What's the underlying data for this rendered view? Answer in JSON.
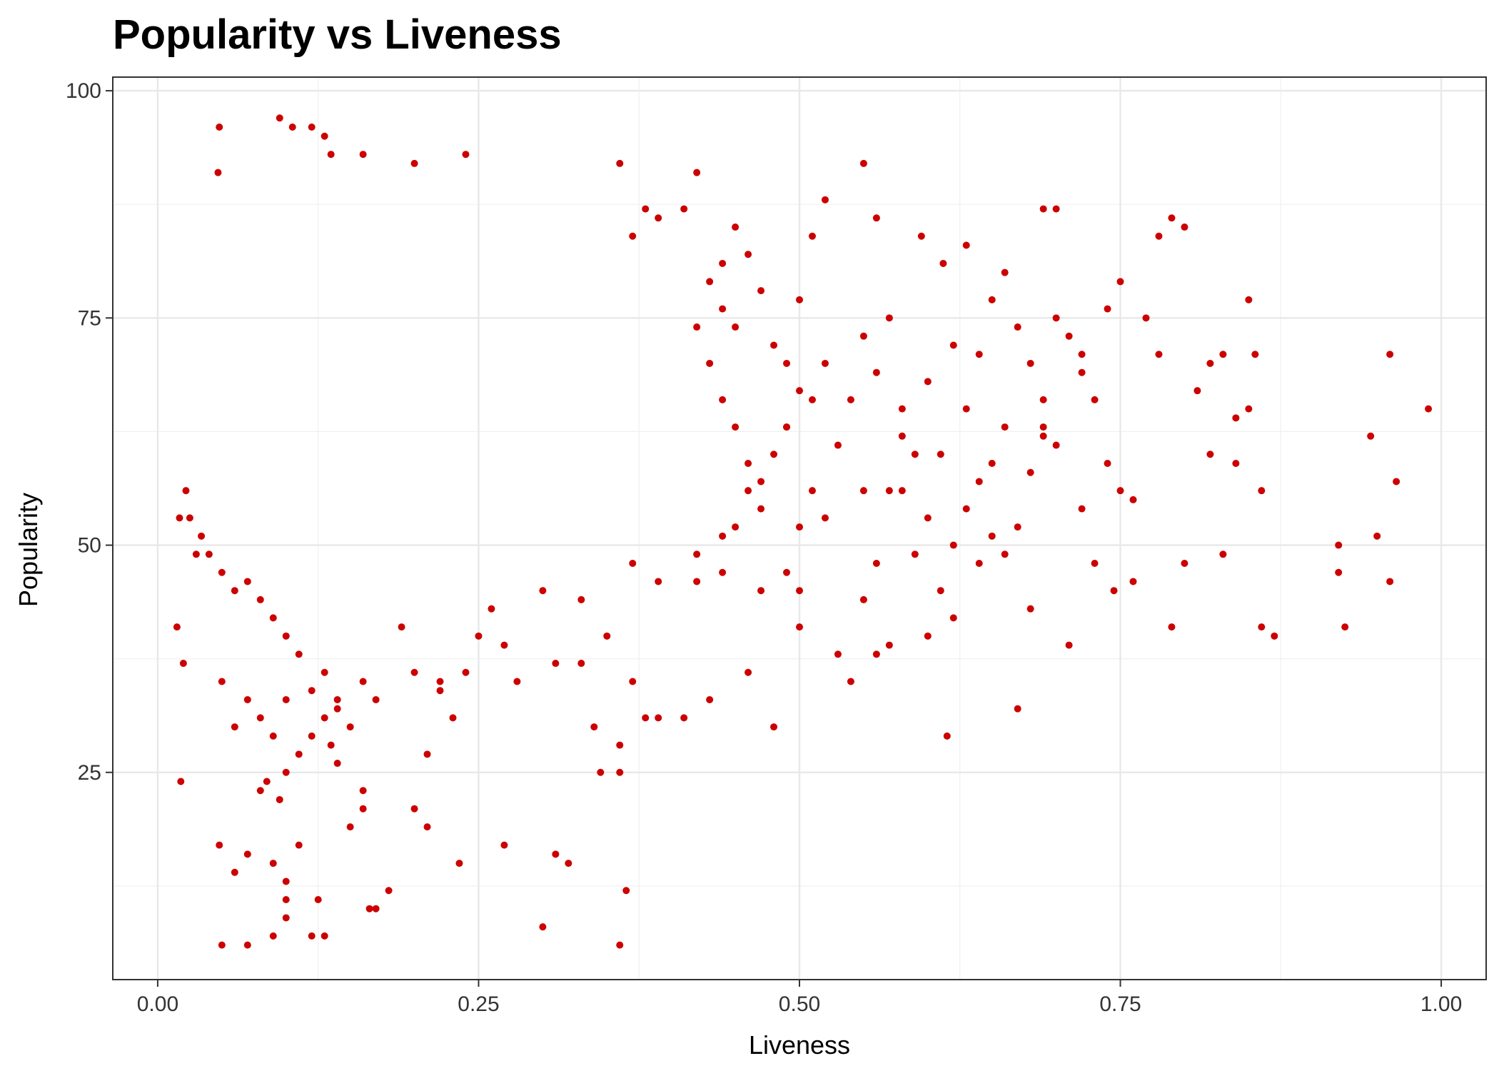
{
  "chart_data": {
    "type": "scatter",
    "title": "Popularity vs Liveness",
    "xlabel": "Liveness",
    "ylabel": "Popularity",
    "xlim": [
      -0.035,
      1.035
    ],
    "ylim": [
      2.2,
      101.5
    ],
    "x_ticks": [
      0.0,
      0.25,
      0.5,
      0.75,
      1.0
    ],
    "x_tick_labels": [
      "0.00",
      "0.25",
      "0.50",
      "0.75",
      "1.00"
    ],
    "y_ticks": [
      25,
      50,
      75,
      100
    ],
    "y_tick_labels": [
      "25",
      "50",
      "75",
      "100"
    ],
    "grid": true,
    "point_color": "#CC0000",
    "points": [
      [
        0.015,
        41
      ],
      [
        0.018,
        24
      ],
      [
        0.02,
        37
      ],
      [
        0.017,
        53
      ],
      [
        0.022,
        56
      ],
      [
        0.025,
        53
      ],
      [
        0.03,
        49
      ],
      [
        0.034,
        51
      ],
      [
        0.048,
        96
      ],
      [
        0.047,
        91
      ],
      [
        0.048,
        17
      ],
      [
        0.06,
        14
      ],
      [
        0.07,
        16
      ],
      [
        0.08,
        23
      ],
      [
        0.085,
        24
      ],
      [
        0.09,
        15
      ],
      [
        0.095,
        22
      ],
      [
        0.1,
        25
      ],
      [
        0.1,
        13
      ],
      [
        0.1,
        11
      ],
      [
        0.11,
        17
      ],
      [
        0.12,
        7
      ],
      [
        0.125,
        11
      ],
      [
        0.13,
        7
      ],
      [
        0.135,
        28
      ],
      [
        0.14,
        26
      ],
      [
        0.15,
        19
      ],
      [
        0.16,
        21
      ],
      [
        0.165,
        10
      ],
      [
        0.17,
        10
      ],
      [
        0.21,
        27
      ],
      [
        0.21,
        19
      ],
      [
        0.235,
        15
      ],
      [
        0.27,
        17
      ],
      [
        0.3,
        8
      ],
      [
        0.31,
        16
      ],
      [
        0.32,
        15
      ],
      [
        0.345,
        25
      ],
      [
        0.36,
        25
      ],
      [
        0.365,
        12
      ],
      [
        0.36,
        6
      ],
      [
        0.05,
        6
      ],
      [
        0.07,
        6
      ],
      [
        0.09,
        7
      ],
      [
        0.1,
        9
      ],
      [
        0.105,
        96
      ],
      [
        0.095,
        97
      ],
      [
        0.12,
        96
      ],
      [
        0.13,
        95
      ],
      [
        0.135,
        93
      ],
      [
        0.16,
        93
      ],
      [
        0.2,
        92
      ],
      [
        0.24,
        93
      ],
      [
        0.36,
        92
      ],
      [
        0.42,
        91
      ],
      [
        0.55,
        92
      ],
      [
        0.52,
        88
      ],
      [
        0.51,
        84
      ],
      [
        0.56,
        86
      ],
      [
        0.595,
        84
      ],
      [
        0.612,
        81
      ],
      [
        0.63,
        83
      ],
      [
        0.69,
        87
      ],
      [
        0.7,
        87
      ],
      [
        0.78,
        84
      ],
      [
        0.79,
        86
      ],
      [
        0.8,
        85
      ],
      [
        0.85,
        77
      ],
      [
        0.72,
        71
      ],
      [
        0.77,
        75
      ],
      [
        0.74,
        76
      ],
      [
        0.75,
        79
      ],
      [
        0.96,
        71
      ],
      [
        0.99,
        65
      ],
      [
        0.965,
        57
      ],
      [
        0.95,
        51
      ],
      [
        0.945,
        62
      ],
      [
        0.92,
        50
      ],
      [
        0.92,
        47
      ],
      [
        0.925,
        41
      ],
      [
        0.96,
        46
      ],
      [
        0.87,
        40
      ],
      [
        0.86,
        41
      ],
      [
        0.82,
        60
      ],
      [
        0.83,
        49
      ],
      [
        0.84,
        59
      ],
      [
        0.85,
        65
      ],
      [
        0.855,
        71
      ],
      [
        0.86,
        56
      ],
      [
        0.8,
        48
      ],
      [
        0.79,
        41
      ],
      [
        0.76,
        46
      ],
      [
        0.75,
        56
      ],
      [
        0.745,
        45
      ],
      [
        0.73,
        48
      ],
      [
        0.72,
        54
      ],
      [
        0.71,
        39
      ],
      [
        0.7,
        61
      ],
      [
        0.69,
        63
      ],
      [
        0.68,
        43
      ],
      [
        0.67,
        32
      ],
      [
        0.66,
        63
      ],
      [
        0.65,
        59
      ],
      [
        0.64,
        57
      ],
      [
        0.62,
        42
      ],
      [
        0.615,
        29
      ],
      [
        0.61,
        45
      ],
      [
        0.6,
        40
      ],
      [
        0.59,
        49
      ],
      [
        0.58,
        56
      ],
      [
        0.57,
        39
      ],
      [
        0.56,
        38
      ],
      [
        0.55,
        44
      ],
      [
        0.54,
        35
      ],
      [
        0.53,
        38
      ],
      [
        0.52,
        53
      ],
      [
        0.5,
        41
      ],
      [
        0.5,
        45
      ],
      [
        0.49,
        47
      ],
      [
        0.48,
        30
      ],
      [
        0.47,
        45
      ],
      [
        0.46,
        36
      ],
      [
        0.45,
        52
      ],
      [
        0.44,
        47
      ],
      [
        0.43,
        33
      ],
      [
        0.42,
        46
      ],
      [
        0.41,
        31
      ],
      [
        0.39,
        31
      ],
      [
        0.38,
        31
      ],
      [
        0.37,
        35
      ],
      [
        0.36,
        28
      ],
      [
        0.34,
        30
      ],
      [
        0.33,
        37
      ],
      [
        0.31,
        37
      ],
      [
        0.28,
        35
      ],
      [
        0.27,
        39
      ],
      [
        0.25,
        40
      ],
      [
        0.24,
        36
      ],
      [
        0.23,
        31
      ],
      [
        0.22,
        34
      ],
      [
        0.2,
        36
      ],
      [
        0.19,
        41
      ],
      [
        0.17,
        33
      ],
      [
        0.16,
        35
      ],
      [
        0.15,
        30
      ],
      [
        0.14,
        32
      ],
      [
        0.13,
        36
      ],
      [
        0.12,
        34
      ],
      [
        0.11,
        38
      ],
      [
        0.1,
        40
      ],
      [
        0.09,
        42
      ],
      [
        0.08,
        44
      ],
      [
        0.07,
        46
      ],
      [
        0.06,
        45
      ],
      [
        0.05,
        47
      ],
      [
        0.04,
        49
      ],
      [
        0.05,
        35
      ],
      [
        0.06,
        30
      ],
      [
        0.07,
        33
      ],
      [
        0.08,
        31
      ],
      [
        0.09,
        29
      ],
      [
        0.1,
        33
      ],
      [
        0.11,
        27
      ],
      [
        0.12,
        29
      ],
      [
        0.13,
        31
      ],
      [
        0.14,
        33
      ],
      [
        0.16,
        23
      ],
      [
        0.18,
        12
      ],
      [
        0.2,
        21
      ],
      [
        0.22,
        35
      ],
      [
        0.26,
        43
      ],
      [
        0.3,
        45
      ],
      [
        0.33,
        44
      ],
      [
        0.35,
        40
      ],
      [
        0.37,
        48
      ],
      [
        0.39,
        46
      ],
      [
        0.42,
        49
      ],
      [
        0.44,
        51
      ],
      [
        0.46,
        56
      ],
      [
        0.47,
        54
      ],
      [
        0.48,
        60
      ],
      [
        0.49,
        63
      ],
      [
        0.5,
        67
      ],
      [
        0.51,
        66
      ],
      [
        0.52,
        70
      ],
      [
        0.53,
        61
      ],
      [
        0.54,
        66
      ],
      [
        0.55,
        73
      ],
      [
        0.56,
        69
      ],
      [
        0.57,
        75
      ],
      [
        0.58,
        65
      ],
      [
        0.6,
        68
      ],
      [
        0.62,
        72
      ],
      [
        0.63,
        65
      ],
      [
        0.64,
        71
      ],
      [
        0.65,
        77
      ],
      [
        0.66,
        80
      ],
      [
        0.67,
        74
      ],
      [
        0.68,
        70
      ],
      [
        0.69,
        66
      ],
      [
        0.7,
        75
      ],
      [
        0.71,
        73
      ],
      [
        0.72,
        69
      ],
      [
        0.73,
        66
      ],
      [
        0.74,
        59
      ],
      [
        0.76,
        55
      ],
      [
        0.78,
        71
      ],
      [
        0.81,
        67
      ],
      [
        0.82,
        70
      ],
      [
        0.83,
        71
      ],
      [
        0.84,
        64
      ],
      [
        0.6,
        53
      ],
      [
        0.62,
        50
      ],
      [
        0.63,
        54
      ],
      [
        0.64,
        48
      ],
      [
        0.65,
        51
      ],
      [
        0.66,
        49
      ],
      [
        0.67,
        52
      ],
      [
        0.68,
        58
      ],
      [
        0.69,
        62
      ],
      [
        0.55,
        56
      ],
      [
        0.56,
        48
      ],
      [
        0.57,
        56
      ],
      [
        0.58,
        62
      ],
      [
        0.59,
        60
      ],
      [
        0.61,
        60
      ],
      [
        0.5,
        52
      ],
      [
        0.51,
        56
      ],
      [
        0.49,
        63
      ],
      [
        0.47,
        57
      ],
      [
        0.46,
        59
      ],
      [
        0.45,
        63
      ],
      [
        0.44,
        66
      ],
      [
        0.43,
        70
      ],
      [
        0.45,
        74
      ],
      [
        0.44,
        76
      ],
      [
        0.43,
        79
      ],
      [
        0.42,
        74
      ],
      [
        0.46,
        82
      ],
      [
        0.47,
        78
      ],
      [
        0.48,
        72
      ],
      [
        0.49,
        70
      ],
      [
        0.5,
        77
      ],
      [
        0.45,
        85
      ],
      [
        0.44,
        81
      ],
      [
        0.41,
        87
      ],
      [
        0.39,
        86
      ],
      [
        0.38,
        87
      ],
      [
        0.37,
        84
      ]
    ]
  }
}
